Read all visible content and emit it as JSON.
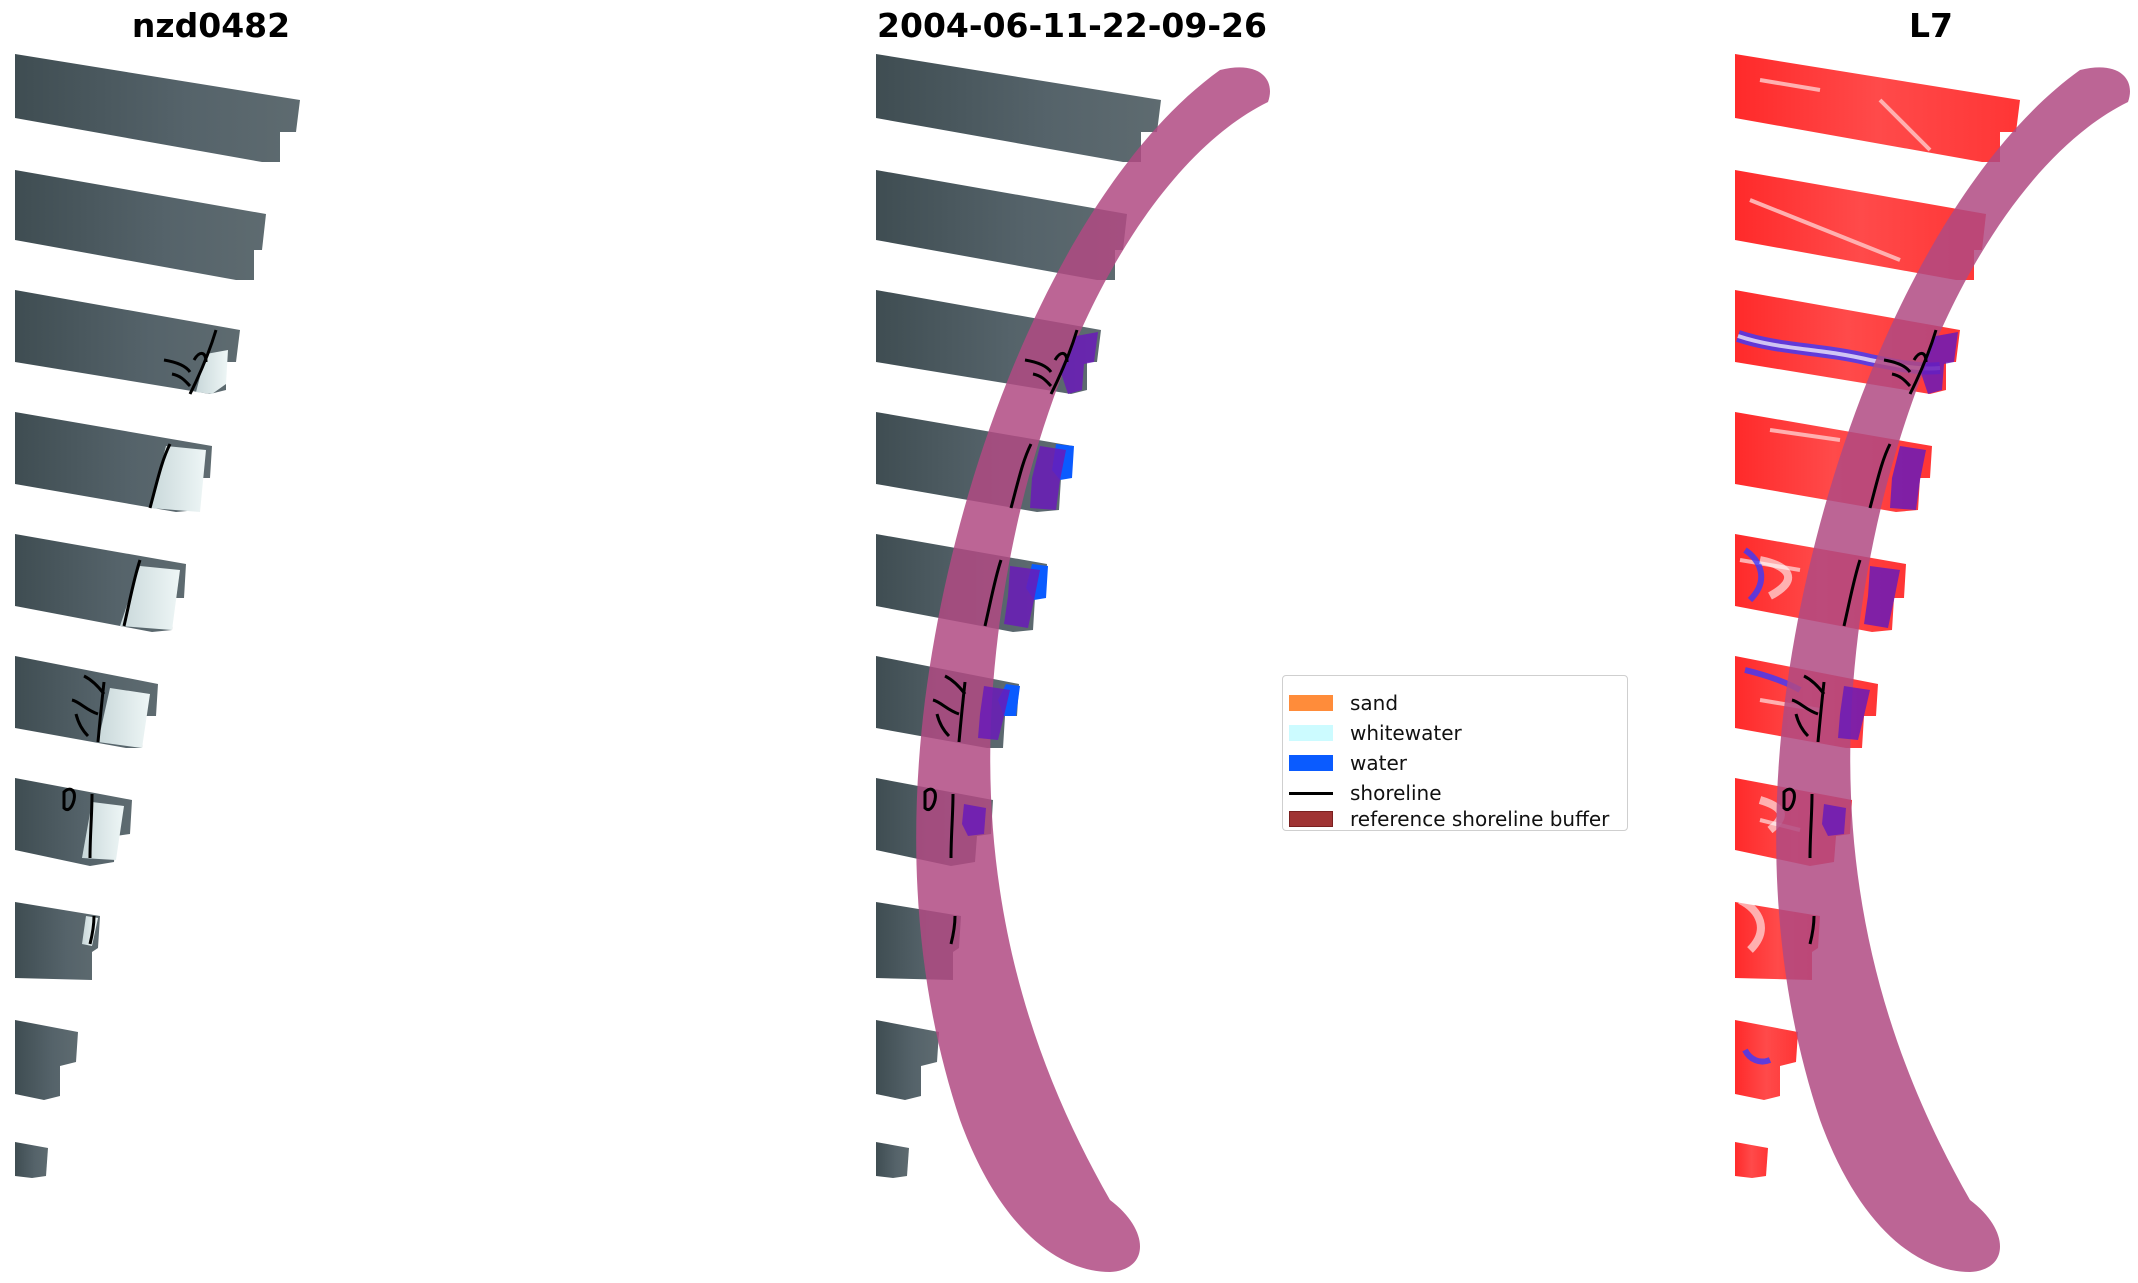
{
  "panels": [
    {
      "title": "nzd0482"
    },
    {
      "title": "2004-06-11-22-09-26"
    },
    {
      "title": "L7"
    }
  ],
  "legend": {
    "items": [
      {
        "label": "sand",
        "color": "#ff8c3a",
        "kind": "patch"
      },
      {
        "label": "whitewater",
        "color": "#ccfbff",
        "kind": "patch"
      },
      {
        "label": "water",
        "color": "#0a5bff",
        "kind": "patch"
      },
      {
        "label": "shoreline",
        "color": "#000000",
        "kind": "line"
      },
      {
        "label": "reference shoreline buffer",
        "color": "#a03434",
        "kind": "patch"
      }
    ]
  },
  "colors": {
    "imagery": "#4f5b62",
    "imagery_dark": "#3c4a4e",
    "surf": "#d8e6e6",
    "buffer": "#b04a82",
    "classified_water": "#6a1bb8",
    "index_red": "#ff2020",
    "index_blue": "#3a3aff"
  }
}
